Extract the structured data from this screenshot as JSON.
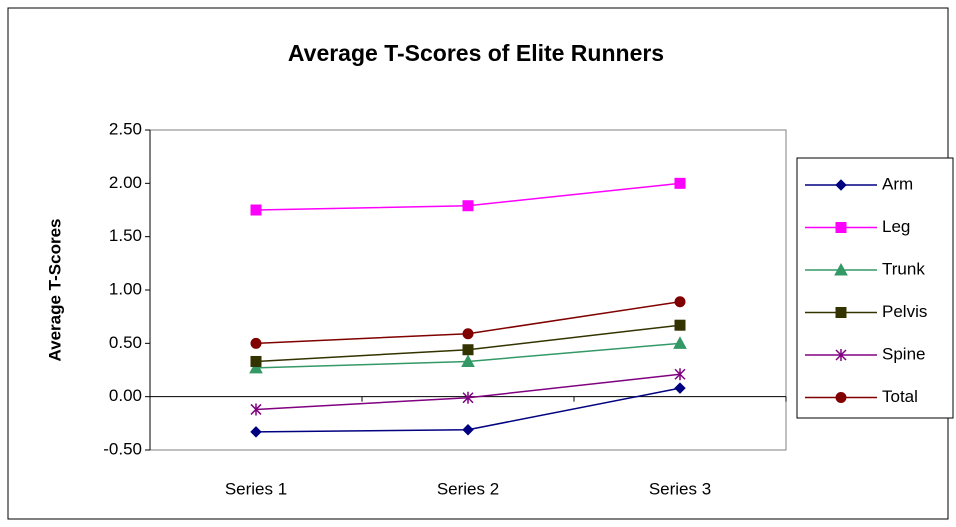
{
  "chart_data": {
    "type": "line",
    "title": "Average T-Scores of Elite Runners",
    "y_label": "Average T-Scores",
    "categories": [
      "Series 1",
      "Series 2",
      "Series 3"
    ],
    "series": [
      {
        "name": "Arm",
        "color": "#000080",
        "marker": "diamond",
        "values": [
          -0.33,
          -0.31,
          0.08
        ]
      },
      {
        "name": "Leg",
        "color": "#ff00ff",
        "marker": "square",
        "values": [
          1.75,
          1.79,
          2.0
        ]
      },
      {
        "name": "Trunk",
        "color": "#339966",
        "marker": "triangle",
        "values": [
          0.27,
          0.33,
          0.5
        ]
      },
      {
        "name": "Pelvis",
        "color": "#333300",
        "marker": "square",
        "values": [
          0.33,
          0.44,
          0.67
        ]
      },
      {
        "name": "Spine",
        "color": "#800080",
        "marker": "star",
        "values": [
          -0.12,
          -0.01,
          0.21
        ]
      },
      {
        "name": "Total",
        "color": "#800000",
        "marker": "circle",
        "values": [
          0.5,
          0.59,
          0.89
        ]
      }
    ],
    "ylim": [
      -0.5,
      2.5
    ],
    "yticks": [
      {
        "value": -0.5,
        "label": "-0.50"
      },
      {
        "value": 0,
        "label": "0.00"
      },
      {
        "value": 0.5,
        "label": "0.50"
      },
      {
        "value": 1,
        "label": "1.00"
      },
      {
        "value": 1.5,
        "label": "1.50"
      },
      {
        "value": 2,
        "label": "2.00"
      },
      {
        "value": 2.5,
        "label": "2.50"
      }
    ],
    "grid": false,
    "legend": "right"
  }
}
